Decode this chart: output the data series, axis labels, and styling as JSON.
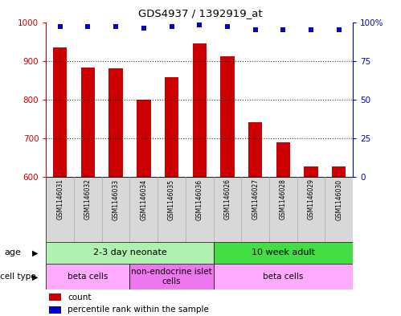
{
  "title": "GDS4937 / 1392919_at",
  "categories": [
    "GSM1146031",
    "GSM1146032",
    "GSM1146033",
    "GSM1146034",
    "GSM1146035",
    "GSM1146036",
    "GSM1146026",
    "GSM1146027",
    "GSM1146028",
    "GSM1146029",
    "GSM1146030"
  ],
  "bar_values": [
    935,
    883,
    880,
    800,
    858,
    945,
    912,
    742,
    690,
    628,
    628
  ],
  "percentile_values": [
    97,
    97,
    97,
    96,
    97,
    98,
    97,
    95,
    95,
    95,
    95
  ],
  "ylim_left": [
    600,
    1000
  ],
  "ylim_right": [
    0,
    100
  ],
  "yticks_left": [
    600,
    700,
    800,
    900,
    1000
  ],
  "yticks_right": [
    0,
    25,
    50,
    75,
    100
  ],
  "bar_color": "#cc0000",
  "scatter_color": "#0000cc",
  "grid_dotted_values": [
    700,
    800,
    900
  ],
  "age_groups": [
    {
      "label": "2-3 day neonate",
      "start": 0,
      "end": 6,
      "color": "#b0f0b0"
    },
    {
      "label": "10 week adult",
      "start": 6,
      "end": 11,
      "color": "#44dd44"
    }
  ],
  "cell_type_groups": [
    {
      "label": "beta cells",
      "start": 0,
      "end": 3,
      "color": "#ffaaff"
    },
    {
      "label": "non-endocrine islet\ncells",
      "start": 3,
      "end": 6,
      "color": "#ee77ee"
    },
    {
      "label": "beta cells",
      "start": 6,
      "end": 11,
      "color": "#ffaaff"
    }
  ],
  "legend_items": [
    {
      "color": "#cc0000",
      "label": "count"
    },
    {
      "color": "#0000cc",
      "label": "percentile rank within the sample"
    }
  ],
  "age_label": "age",
  "cell_type_label": "cell type",
  "label_bg_color": "#d8d8d8",
  "label_sep_color": "#aaaaaa",
  "background_color": "#ffffff",
  "border_color": "#000000"
}
